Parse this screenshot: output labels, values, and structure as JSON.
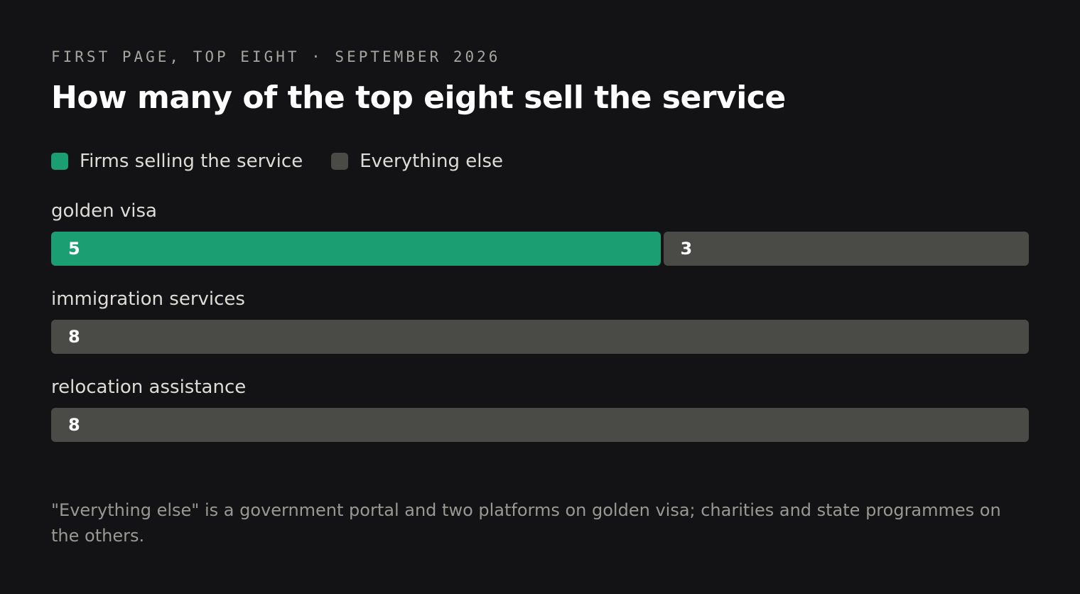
{
  "kicker": "FIRST PAGE, TOP EIGHT · SEPTEMBER 2026",
  "title": "How many of the top eight sell the service",
  "footnote": "\"Everything else\" is a government portal and two platforms on golden visa; charities and state programmes on the others.",
  "colors": {
    "selling": "#1b9e72",
    "else": "#4a4a46",
    "background": "#131315"
  },
  "chart_data": {
    "type": "bar",
    "orientation": "horizontal",
    "stacked": true,
    "categories": [
      "golden visa",
      "immigration services",
      "relocation assistance"
    ],
    "total": 8,
    "series": [
      {
        "name": "Firms selling the service",
        "values": [
          5,
          0,
          0
        ]
      },
      {
        "name": "Everything else",
        "values": [
          3,
          8,
          8
        ]
      }
    ],
    "legend": "top-left",
    "grid": false
  }
}
